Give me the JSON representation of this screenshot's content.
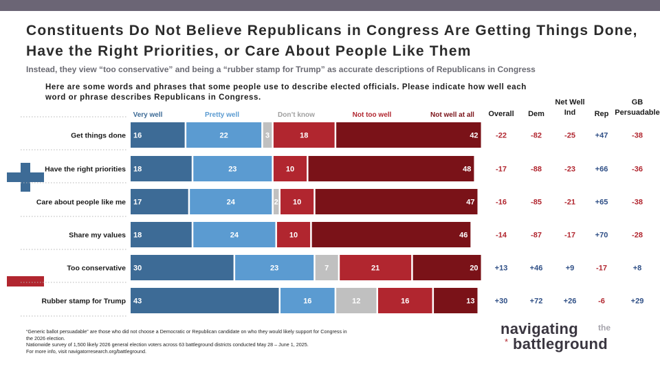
{
  "title": "Constituents Do Not Believe Republicans in Congress Are Getting Things Done, Have the Right Priorities, or Care About People Like Them",
  "subtitle": "Instead, they view “too conservative” and being a “rubber stamp for Trump” as accurate descriptions of Republicans in Congress",
  "question": "Here are some words and phrases that some people use to describe elected officials. Please indicate how well each word or phrase describes Republicans in Congress.",
  "icons": {
    "positive": "plus-icon",
    "negative": "minus-icon"
  },
  "colors": {
    "very_well": "#3d6b96",
    "pretty_well": "#5b9bd1",
    "dont_know": "#c0c0c0",
    "not_too_well": "#b1262f",
    "not_well_at_all": "#7a1218",
    "net_neg": "#b1262f",
    "net_pos": "#2f4f86"
  },
  "chart_data": {
    "type": "bar",
    "orientation": "horizontal",
    "stacked": true,
    "title": "Constituents Do Not Believe Republicans in Congress Are Getting Things Done, Have the Right Priorities, or Care About People Like Them",
    "categories": [
      "Get things done",
      "Have the right priorities",
      "Care about people like me",
      "Share my values",
      "Too conservative",
      "Rubber stamp for Trump"
    ],
    "series": [
      {
        "name": "Very well",
        "values": [
          16,
          18,
          17,
          18,
          30,
          43
        ]
      },
      {
        "name": "Pretty well",
        "values": [
          22,
          23,
          24,
          24,
          23,
          16
        ]
      },
      {
        "name": "Don’t know",
        "values": [
          3,
          0,
          2,
          0,
          7,
          12
        ]
      },
      {
        "name": "Not too well",
        "values": [
          18,
          10,
          10,
          10,
          21,
          16
        ]
      },
      {
        "name": "Not well at all",
        "values": [
          42,
          48,
          47,
          46,
          20,
          13
        ]
      }
    ],
    "value_labels": [
      [
        "16",
        "22",
        "3",
        "18",
        "42"
      ],
      [
        "18",
        "23",
        "",
        "10",
        "48"
      ],
      [
        "17",
        "24",
        "2",
        "10",
        "47"
      ],
      [
        "18",
        "24",
        "",
        "10",
        "46"
      ],
      [
        "30",
        "23",
        "7",
        "21",
        "20"
      ],
      [
        "43",
        "16",
        "12",
        "16",
        "13"
      ]
    ],
    "net_columns": [
      {
        "header": [
          "Overall"
        ],
        "values": [
          "-22",
          "-17",
          "-16",
          "-14",
          "+13",
          "+30"
        ]
      },
      {
        "header": [
          "Dem"
        ],
        "values": [
          "-82",
          "-88",
          "-85",
          "-87",
          "+46",
          "+72"
        ]
      },
      {
        "header": [
          "Net Well",
          "Ind"
        ],
        "values": [
          "-25",
          "-23",
          "-21",
          "-17",
          "+9",
          "+26"
        ]
      },
      {
        "header": [
          "Rep"
        ],
        "values": [
          "+47",
          "+66",
          "+65",
          "+70",
          "-17",
          "-6"
        ]
      },
      {
        "header": [
          "GB",
          "Persuadable"
        ],
        "values": [
          "-38",
          "-36",
          "-38",
          "-28",
          "+8",
          "+29"
        ]
      }
    ],
    "legend_position": "top",
    "xlim": [
      0,
      100
    ]
  },
  "footnotes": [
    "“Generic ballot persuadable” are those who did not choose a Democratic or Republican candidate on who they would likely support for Congress in",
    "the 2026 election.",
    "Nationwide survey of 1,500 likely 2026 general election voters across 63 battleground districts conducted May 28 – June 1, 2025.",
    "For more info, visit navigatorresearch.org/battleground."
  ],
  "logo": {
    "line1": "navigating",
    "small": "the",
    "star": "*",
    "line2": "battleground"
  }
}
